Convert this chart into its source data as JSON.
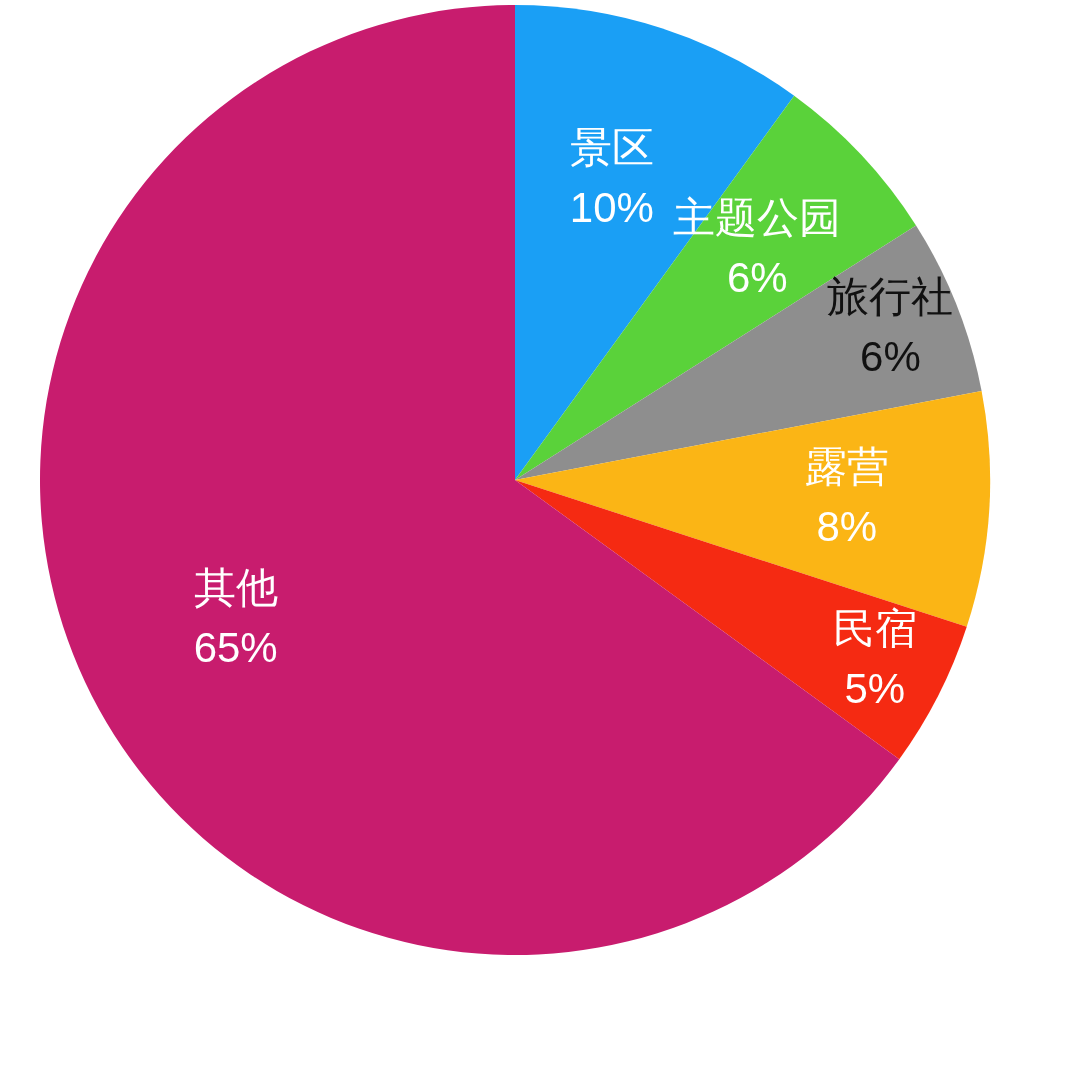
{
  "chart_data": {
    "type": "pie",
    "categories": [
      "景区",
      "主题公园",
      "旅行社",
      "露营",
      "民宿",
      "其他"
    ],
    "values": [
      10,
      6,
      6,
      8,
      5,
      65
    ],
    "colors": [
      "#1a9ff5",
      "#5ad23a",
      "#8e8e8e",
      "#fbb515",
      "#f52a12",
      "#c81c6e"
    ],
    "value_labels": [
      "10%",
      "6%",
      "6%",
      "8%",
      "5%",
      "65%"
    ]
  }
}
